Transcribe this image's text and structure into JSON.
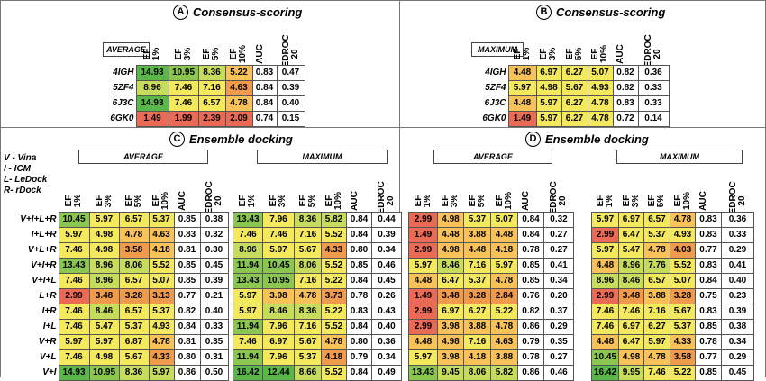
{
  "panels": {
    "A": {
      "letter": "A",
      "title": "Consensus-scoring",
      "stat": "AVERAGE"
    },
    "B": {
      "letter": "B",
      "title": "Consensus-scoring",
      "stat": "MAXIMUM"
    },
    "C": {
      "letter": "C",
      "title": "Ensemble docking",
      "stat_left": "AVERAGE",
      "stat_right": "MAXIMUM"
    },
    "D": {
      "letter": "D",
      "title": "Ensemble docking",
      "stat_left": "AVERAGE",
      "stat_right": "MAXIMUM"
    }
  },
  "columns": [
    "EF\n1%",
    "EF\n3%",
    "EF\n5%",
    "EF\n10%",
    "AUC",
    "BEDROC\n20"
  ],
  "legend": [
    "V - Vina",
    "I - ICM",
    "L- LeDock",
    "R- rDock"
  ],
  "top_rows": [
    "4IGH",
    "5ZF4",
    "6J3C",
    "6GK0"
  ],
  "ens_rows": [
    "V+I+L+R",
    "I+L+R",
    "V+L+R",
    "V+I+R",
    "V+I+L",
    "L+R",
    "I+R",
    "I+L",
    "V+R",
    "V+L",
    "V+I"
  ],
  "colors": {
    "g1": "#5bb74a",
    "g2": "#8ac650",
    "g3": "#c7dc5c",
    "y1": "#f4e85c",
    "o1": "#f8c258",
    "o2": "#f09a4c",
    "r1": "#ea6a55",
    "w": "#ffffff"
  },
  "tables": {
    "A": [
      [
        "14.93",
        "10.95",
        "8.36",
        "5.22",
        "0.83",
        "0.47"
      ],
      [
        "8.96",
        "7.46",
        "7.16",
        "4.63",
        "0.84",
        "0.39"
      ],
      [
        "14.93",
        "7.46",
        "6.57",
        "4.78",
        "0.84",
        "0.40"
      ],
      [
        "1.49",
        "1.99",
        "2.39",
        "2.09",
        "0.74",
        "0.15"
      ]
    ],
    "B": [
      [
        "4.48",
        "6.97",
        "6.27",
        "5.07",
        "0.82",
        "0.36"
      ],
      [
        "5.97",
        "4.98",
        "5.67",
        "4.93",
        "0.82",
        "0.33"
      ],
      [
        "4.48",
        "5.97",
        "6.27",
        "4.78",
        "0.83",
        "0.33"
      ],
      [
        "1.49",
        "5.97",
        "6.27",
        "4.78",
        "0.72",
        "0.14"
      ]
    ],
    "CA": [
      [
        "10.45",
        "5.97",
        "6.57",
        "5.37",
        "0.85",
        "0.38"
      ],
      [
        "5.97",
        "4.98",
        "4.78",
        "4.63",
        "0.83",
        "0.32"
      ],
      [
        "7.46",
        "4.98",
        "3.58",
        "4.18",
        "0.81",
        "0.30"
      ],
      [
        "13.43",
        "8.96",
        "8.06",
        "5.52",
        "0.85",
        "0.45"
      ],
      [
        "7.46",
        "8.96",
        "6.57",
        "5.07",
        "0.85",
        "0.39"
      ],
      [
        "2.99",
        "3.48",
        "3.28",
        "3.13",
        "0.77",
        "0.21"
      ],
      [
        "7.46",
        "8.46",
        "6.57",
        "5.37",
        "0.82",
        "0.40"
      ],
      [
        "7.46",
        "5.47",
        "5.37",
        "4.93",
        "0.84",
        "0.33"
      ],
      [
        "5.97",
        "5.97",
        "6.87",
        "4.78",
        "0.81",
        "0.35"
      ],
      [
        "7.46",
        "4.98",
        "5.67",
        "4.33",
        "0.80",
        "0.31"
      ],
      [
        "14.93",
        "10.95",
        "8.36",
        "5.97",
        "0.86",
        "0.50"
      ]
    ],
    "CM": [
      [
        "13.43",
        "7.96",
        "8.36",
        "5.82",
        "0.84",
        "0.44"
      ],
      [
        "7.46",
        "7.46",
        "7.16",
        "5.52",
        "0.84",
        "0.39"
      ],
      [
        "8.96",
        "5.97",
        "5.67",
        "4.33",
        "0.80",
        "0.34"
      ],
      [
        "11.94",
        "10.45",
        "8.06",
        "5.52",
        "0.85",
        "0.46"
      ],
      [
        "13.43",
        "10.95",
        "7.16",
        "5.22",
        "0.84",
        "0.45"
      ],
      [
        "5.97",
        "3.98",
        "4.78",
        "3.73",
        "0.78",
        "0.26"
      ],
      [
        "5.97",
        "8.46",
        "8.36",
        "5.22",
        "0.83",
        "0.43"
      ],
      [
        "11.94",
        "7.96",
        "7.16",
        "5.52",
        "0.84",
        "0.40"
      ],
      [
        "7.46",
        "6.97",
        "5.67",
        "4.78",
        "0.80",
        "0.36"
      ],
      [
        "11.94",
        "7.96",
        "5.37",
        "4.18",
        "0.79",
        "0.34"
      ],
      [
        "16.42",
        "12.44",
        "8.66",
        "5.52",
        "0.84",
        "0.49"
      ]
    ],
    "DA": [
      [
        "2.99",
        "4.98",
        "5.37",
        "5.07",
        "0.84",
        "0.32"
      ],
      [
        "1.49",
        "4.48",
        "3.88",
        "4.48",
        "0.84",
        "0.27"
      ],
      [
        "2.99",
        "4.98",
        "4.48",
        "4.18",
        "0.78",
        "0.27"
      ],
      [
        "5.97",
        "8.46",
        "7.16",
        "5.97",
        "0.85",
        "0.41"
      ],
      [
        "4.48",
        "6.47",
        "5.37",
        "4.78",
        "0.85",
        "0.34"
      ],
      [
        "1.49",
        "3.48",
        "3.28",
        "2.84",
        "0.76",
        "0.20"
      ],
      [
        "2.99",
        "6.97",
        "6.27",
        "5.22",
        "0.82",
        "0.37"
      ],
      [
        "2.99",
        "3.98",
        "3.88",
        "4.78",
        "0.86",
        "0.29"
      ],
      [
        "4.48",
        "4.98",
        "7.16",
        "4.63",
        "0.79",
        "0.35"
      ],
      [
        "5.97",
        "3.98",
        "4.18",
        "3.88",
        "0.78",
        "0.27"
      ],
      [
        "13.43",
        "9.45",
        "8.06",
        "5.82",
        "0.86",
        "0.46"
      ]
    ],
    "DM": [
      [
        "5.97",
        "6.97",
        "6.57",
        "4.78",
        "0.83",
        "0.36"
      ],
      [
        "2.99",
        "6.47",
        "5.37",
        "4.93",
        "0.83",
        "0.33"
      ],
      [
        "5.97",
        "5.47",
        "4.78",
        "4.03",
        "0.77",
        "0.29"
      ],
      [
        "4.48",
        "8.96",
        "7.76",
        "5.52",
        "0.83",
        "0.41"
      ],
      [
        "8.96",
        "8.46",
        "6.57",
        "5.07",
        "0.84",
        "0.40"
      ],
      [
        "2.99",
        "3.48",
        "3.88",
        "3.28",
        "0.75",
        "0.23"
      ],
      [
        "7.46",
        "7.46",
        "7.16",
        "5.67",
        "0.83",
        "0.39"
      ],
      [
        "7.46",
        "6.97",
        "6.27",
        "5.37",
        "0.85",
        "0.38"
      ],
      [
        "4.48",
        "6.47",
        "5.97",
        "4.33",
        "0.78",
        "0.34"
      ],
      [
        "10.45",
        "4.98",
        "4.78",
        "3.58",
        "0.77",
        "0.29"
      ],
      [
        "16.42",
        "9.95",
        "7.46",
        "5.22",
        "0.85",
        "0.45"
      ]
    ]
  },
  "shades": {
    "A": [
      [
        "g1",
        "g2",
        "g3",
        "o1"
      ],
      [
        "g3",
        "y1",
        "y1",
        "o2"
      ],
      [
        "g1",
        "y1",
        "y1",
        "o1"
      ],
      [
        "r1",
        "r1",
        "r1",
        "r1"
      ]
    ],
    "B": [
      [
        "o1",
        "y1",
        "y1",
        "y1"
      ],
      [
        "y1",
        "y1",
        "y1",
        "y1"
      ],
      [
        "o1",
        "y1",
        "y1",
        "y1"
      ],
      [
        "r1",
        "y1",
        "y1",
        "y1"
      ]
    ],
    "CA": [
      [
        "g2",
        "y1",
        "y1",
        "y1"
      ],
      [
        "y1",
        "y1",
        "o1",
        "o1"
      ],
      [
        "y1",
        "y1",
        "o2",
        "o1"
      ],
      [
        "g2",
        "g3",
        "g3",
        "y1"
      ],
      [
        "y1",
        "g3",
        "y1",
        "y1"
      ],
      [
        "r1",
        "o2",
        "o2",
        "o2"
      ],
      [
        "y1",
        "g3",
        "y1",
        "y1"
      ],
      [
        "y1",
        "y1",
        "y1",
        "y1"
      ],
      [
        "y1",
        "y1",
        "y1",
        "o1"
      ],
      [
        "y1",
        "y1",
        "y1",
        "o2"
      ],
      [
        "g1",
        "g2",
        "g3",
        "g3"
      ]
    ],
    "CM": [
      [
        "g2",
        "y1",
        "g3",
        "g3"
      ],
      [
        "y1",
        "y1",
        "y1",
        "y1"
      ],
      [
        "g3",
        "y1",
        "y1",
        "o2"
      ],
      [
        "g2",
        "g2",
        "g3",
        "y1"
      ],
      [
        "g2",
        "g2",
        "y1",
        "y1"
      ],
      [
        "y1",
        "o1",
        "o1",
        "o2"
      ],
      [
        "y1",
        "g3",
        "g3",
        "y1"
      ],
      [
        "g2",
        "y1",
        "y1",
        "y1"
      ],
      [
        "y1",
        "y1",
        "y1",
        "o1"
      ],
      [
        "g2",
        "y1",
        "y1",
        "o2"
      ],
      [
        "g1",
        "g1",
        "g3",
        "y1"
      ]
    ],
    "DA": [
      [
        "r1",
        "o1",
        "y1",
        "y1"
      ],
      [
        "r1",
        "o1",
        "o1",
        "o1"
      ],
      [
        "r1",
        "o1",
        "o1",
        "o1"
      ],
      [
        "y1",
        "g3",
        "y1",
        "y1"
      ],
      [
        "o1",
        "y1",
        "y1",
        "o1"
      ],
      [
        "r1",
        "o2",
        "o2",
        "o2"
      ],
      [
        "r1",
        "y1",
        "y1",
        "y1"
      ],
      [
        "r1",
        "o1",
        "o1",
        "o1"
      ],
      [
        "o1",
        "o1",
        "y1",
        "o1"
      ],
      [
        "y1",
        "o1",
        "o1",
        "o1"
      ],
      [
        "g2",
        "g3",
        "g3",
        "g3"
      ]
    ],
    "DM": [
      [
        "y1",
        "y1",
        "y1",
        "o1"
      ],
      [
        "r1",
        "y1",
        "y1",
        "y1"
      ],
      [
        "y1",
        "y1",
        "o1",
        "o2"
      ],
      [
        "o1",
        "g3",
        "g3",
        "y1"
      ],
      [
        "g3",
        "g3",
        "y1",
        "y1"
      ],
      [
        "r1",
        "o2",
        "o1",
        "o2"
      ],
      [
        "y1",
        "y1",
        "y1",
        "y1"
      ],
      [
        "y1",
        "y1",
        "y1",
        "y1"
      ],
      [
        "o1",
        "y1",
        "y1",
        "o1"
      ],
      [
        "g2",
        "o1",
        "o1",
        "o2"
      ],
      [
        "g1",
        "g3",
        "y1",
        "y1"
      ]
    ]
  }
}
